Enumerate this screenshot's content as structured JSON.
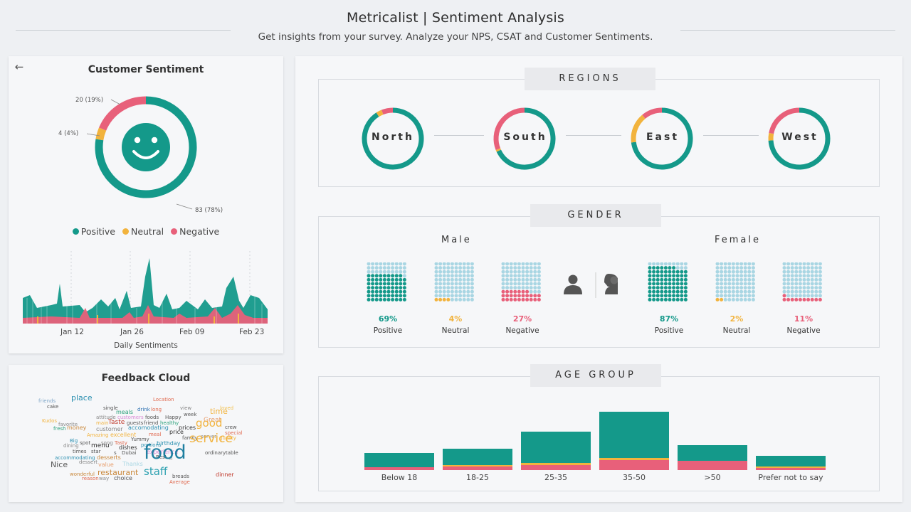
{
  "header": {
    "title": "Metricalist | Sentiment Analysis",
    "subtitle": "Get insights from your survey. Analyze your NPS, CSAT and Customer Sentiments."
  },
  "colors": {
    "positive": "#14998a",
    "neutral": "#f2b33d",
    "negative": "#e8607a",
    "empty": "#a9d6e3"
  },
  "sentiment": {
    "title": "Customer Sentiment",
    "back_icon": "arrow-left-icon",
    "face_icon": "smiley-face-icon",
    "labels": {
      "negative": "20 (19%)",
      "neutral": "4 (4%)",
      "positive": "83 (78%)"
    },
    "legend": [
      "Positive",
      "Neutral",
      "Negative"
    ],
    "xticks": [
      "Jan 12",
      "Jan 26",
      "Feb 09",
      "Feb 23"
    ],
    "xlabel": "Daily Sentiments"
  },
  "chart_data": {
    "type": "pie",
    "categories": [
      "Positive",
      "Neutral",
      "Negative"
    ],
    "values": [
      83,
      4,
      20
    ],
    "percents": [
      78,
      4,
      19
    ]
  },
  "cloud": {
    "title": "Feedback Cloud",
    "words": [
      {
        "t": "friends",
        "c": "#7fa7c9",
        "s": 7
      },
      {
        "t": "place",
        "c": "#2a8fb0",
        "s": 11
      },
      {
        "t": "Location",
        "c": "#e06a50",
        "s": 7
      },
      {
        "t": "cake",
        "c": "#555",
        "s": 7
      },
      {
        "t": "single",
        "c": "#555",
        "s": 7
      },
      {
        "t": "view",
        "c": "#888",
        "s": 7
      },
      {
        "t": "loved",
        "c": "#f2c14e",
        "s": 7
      },
      {
        "t": "meals",
        "c": "#2aa07a",
        "s": 8
      },
      {
        "t": "drink",
        "c": "#2a6fb0",
        "s": 7
      },
      {
        "t": "long",
        "c": "#e06a50",
        "s": 7
      },
      {
        "t": "week",
        "c": "#555",
        "s": 7
      },
      {
        "t": "time",
        "c": "#f2b33d",
        "s": 11
      },
      {
        "t": "attitude",
        "c": "#888",
        "s": 7
      },
      {
        "t": "customers",
        "c": "#d98ad6",
        "s": 7
      },
      {
        "t": "foods",
        "c": "#555",
        "s": 7
      },
      {
        "t": "Happy",
        "c": "#555",
        "s": 7
      },
      {
        "t": "Kudos",
        "c": "#f2b33d",
        "s": 7
      },
      {
        "t": "main",
        "c": "#f2b33d",
        "s": 7
      },
      {
        "t": "Taste",
        "c": "#c0392b",
        "s": 9
      },
      {
        "t": "guests",
        "c": "#555",
        "s": 7
      },
      {
        "t": "friend",
        "c": "#555",
        "s": 7
      },
      {
        "t": "healthy",
        "c": "#2aa07a",
        "s": 7
      },
      {
        "t": "Great",
        "c": "#e8a070",
        "s": 9
      },
      {
        "t": "favorite",
        "c": "#888",
        "s": 7
      },
      {
        "t": "prices",
        "c": "#333",
        "s": 8
      },
      {
        "t": "crew",
        "c": "#555",
        "s": 7
      },
      {
        "t": "fresh",
        "c": "#2aa07a",
        "s": 7
      },
      {
        "t": "money",
        "c": "#c9883b",
        "s": 8
      },
      {
        "t": "customer",
        "c": "#888",
        "s": 8
      },
      {
        "t": "accomodating",
        "c": "#2a8fb0",
        "s": 8
      },
      {
        "t": "good",
        "c": "#f2b33d",
        "s": 15
      },
      {
        "t": "special",
        "c": "#e06a50",
        "s": 7
      },
      {
        "t": "Amazing",
        "c": "#f2b33d",
        "s": 7
      },
      {
        "t": "excellent",
        "c": "#f2b33d",
        "s": 8
      },
      {
        "t": "meal",
        "c": "#e06a50",
        "s": 7
      },
      {
        "t": "price",
        "c": "#333",
        "s": 8
      },
      {
        "t": "server",
        "c": "#888",
        "s": 7
      },
      {
        "t": "quality",
        "c": "#f2b33d",
        "s": 7
      },
      {
        "t": "Big",
        "c": "#2a8fb0",
        "s": 7
      },
      {
        "t": "Yummy",
        "c": "#555",
        "s": 7
      },
      {
        "t": "family",
        "c": "#555",
        "s": 7
      },
      {
        "t": "spot",
        "c": "#555",
        "s": 7
      },
      {
        "t": "song",
        "c": "#888",
        "s": 7
      },
      {
        "t": "Tasty",
        "c": "#e06a50",
        "s": 7
      },
      {
        "t": "birthday",
        "c": "#2a8fb0",
        "s": 8
      },
      {
        "t": "dining",
        "c": "#888",
        "s": 7
      },
      {
        "t": "menu",
        "c": "#333",
        "s": 9
      },
      {
        "t": "dishes",
        "c": "#333",
        "s": 8
      },
      {
        "t": "portions",
        "c": "#2a8fb0",
        "s": 7
      },
      {
        "t": "service",
        "c": "#f2b33d",
        "s": 17
      },
      {
        "t": "times",
        "c": "#555",
        "s": 7
      },
      {
        "t": "star",
        "c": "#555",
        "s": 7
      },
      {
        "t": "s",
        "c": "#555",
        "s": 7
      },
      {
        "t": "Dubai",
        "c": "#555",
        "s": 7
      },
      {
        "t": "experience",
        "c": "#d98ad6",
        "s": 8
      },
      {
        "t": "ordinary",
        "c": "#555",
        "s": 7
      },
      {
        "t": "table",
        "c": "#555",
        "s": 7
      },
      {
        "t": "accommodating",
        "c": "#2a8fb0",
        "s": 7
      },
      {
        "t": "desserts",
        "c": "#c9883b",
        "s": 8
      },
      {
        "t": "Best",
        "c": "#555",
        "s": 7
      },
      {
        "t": "n",
        "c": "#888",
        "s": 7
      },
      {
        "t": "Nice",
        "c": "#555",
        "s": 11
      },
      {
        "t": "dessert",
        "c": "#888",
        "s": 7
      },
      {
        "t": "value",
        "c": "#e8a070",
        "s": 8
      },
      {
        "t": "Thanks",
        "c": "#a9d6e3",
        "s": 8
      },
      {
        "t": "food",
        "c": "#1f7fa0",
        "s": 27
      },
      {
        "t": "restaurant",
        "c": "#c9883b",
        "s": 11
      },
      {
        "t": "wonderful",
        "c": "#c9883b",
        "s": 7
      },
      {
        "t": "staff",
        "c": "#2aa0b0",
        "s": 15
      },
      {
        "t": "breads",
        "c": "#555",
        "s": 7
      },
      {
        "t": "dinner",
        "c": "#c0392b",
        "s": 8
      },
      {
        "t": "reason",
        "c": "#e06a50",
        "s": 7
      },
      {
        "t": "way",
        "c": "#888",
        "s": 7
      },
      {
        "t": "choice",
        "c": "#555",
        "s": 8
      },
      {
        "t": "Average",
        "c": "#e06a50",
        "s": 7
      }
    ]
  },
  "regions": {
    "title": "REGIONS",
    "items": [
      {
        "name": "North",
        "pos": 91,
        "neu": 3,
        "neg": 6
      },
      {
        "name": "South",
        "pos": 68,
        "neu": 1,
        "neg": 31
      },
      {
        "name": "East",
        "pos": 73,
        "neu": 16,
        "neg": 11
      },
      {
        "name": "West",
        "pos": 74,
        "neu": 4,
        "neg": 22
      }
    ]
  },
  "gender": {
    "title": "GENDER",
    "male_label": "Male",
    "female_label": "Female",
    "male_icon": "male-user-icon",
    "female_icon": "female-user-icon",
    "male": [
      {
        "pct": "69%",
        "label": "Positive",
        "value": 69,
        "key": "positive"
      },
      {
        "pct": "4%",
        "label": "Neutral",
        "value": 4,
        "key": "neutral"
      },
      {
        "pct": "27%",
        "label": "Negative",
        "value": 27,
        "key": "negative"
      }
    ],
    "female": [
      {
        "pct": "87%",
        "label": "Positive",
        "value": 87,
        "key": "positive"
      },
      {
        "pct": "2%",
        "label": "Neutral",
        "value": 2,
        "key": "neutral"
      },
      {
        "pct": "11%",
        "label": "Negative",
        "value": 11,
        "key": "negative"
      }
    ]
  },
  "age": {
    "title": "AGE GROUP",
    "groups": [
      {
        "label": "Below 18",
        "pos": 20,
        "neu": 0,
        "neg": 4
      },
      {
        "label": "18-25",
        "pos": 23,
        "neu": 2,
        "neg": 5
      },
      {
        "label": "25-35",
        "pos": 44,
        "neu": 3,
        "neg": 7
      },
      {
        "label": "35-50",
        "pos": 65,
        "neu": 3,
        "neg": 14
      },
      {
        "label": ">50",
        "pos": 22,
        "neu": 0,
        "neg": 13
      },
      {
        "label": "Prefer not to say",
        "pos": 15,
        "neu": 2,
        "neg": 3
      }
    ]
  }
}
